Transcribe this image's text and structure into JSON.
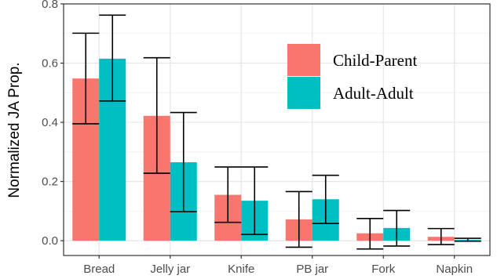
{
  "chart_data": {
    "type": "bar",
    "ylabel": "Normalized JA Prop.",
    "xlabel": "",
    "ylim": [
      -0.05,
      0.8
    ],
    "yticks": [
      0.0,
      0.2,
      0.4,
      0.6,
      0.8
    ],
    "ytick_labels": [
      "0.0",
      "0.2",
      "0.4",
      "0.6",
      "0.8"
    ],
    "grid": true,
    "legend_position": "top-right",
    "categories": [
      "Bread",
      "Jelly jar",
      "Knife",
      "PB jar",
      "Fork",
      "Napkin"
    ],
    "series": [
      {
        "name": "Child-Parent",
        "color": "#F8766D",
        "values": [
          0.548,
          0.422,
          0.155,
          0.072,
          0.025,
          0.013
        ],
        "err_low": [
          0.395,
          0.228,
          0.062,
          -0.022,
          -0.028,
          -0.013
        ],
        "err_high": [
          0.701,
          0.618,
          0.249,
          0.166,
          0.075,
          0.041
        ]
      },
      {
        "name": "Adult-Adult",
        "color": "#00BFC4",
        "values": [
          0.615,
          0.265,
          0.135,
          0.14,
          0.043,
          0.003
        ],
        "err_low": [
          0.472,
          0.098,
          0.021,
          0.058,
          -0.018,
          -0.002
        ],
        "err_high": [
          0.762,
          0.433,
          0.249,
          0.221,
          0.102,
          0.008
        ]
      }
    ]
  }
}
